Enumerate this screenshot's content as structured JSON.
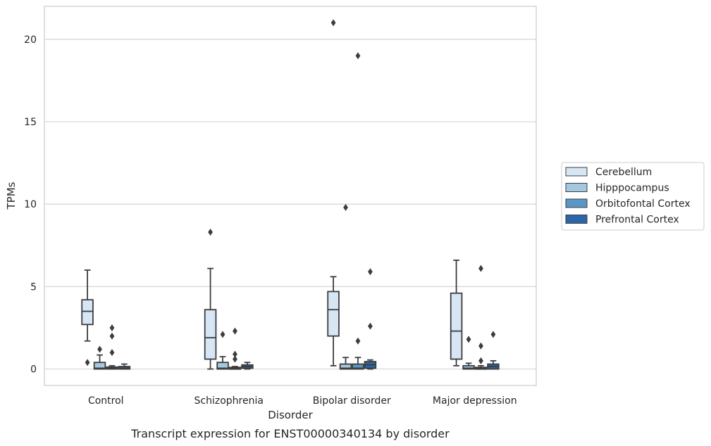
{
  "chart_data": {
    "type": "box",
    "caption": "Transcript expression for ENST00000340134 by disorder",
    "xlabel": "Disorder",
    "ylabel": "TPMs",
    "ylim": [
      -1,
      22
    ],
    "yticks": [
      0,
      5,
      10,
      15,
      20
    ],
    "grid": "horizontal",
    "legend_position": "right",
    "categories": [
      "Control",
      "Schizophrenia",
      "Bipolar disorder",
      "Major depression"
    ],
    "series": [
      {
        "name": "Cerebellum",
        "color": "#d7e6f4",
        "boxes": [
          {
            "whisker_low": 1.7,
            "q1": 2.7,
            "median": 3.5,
            "q3": 4.2,
            "whisker_high": 6.0,
            "outliers": [
              0.4
            ]
          },
          {
            "whisker_low": 0.0,
            "q1": 0.6,
            "median": 1.9,
            "q3": 3.6,
            "whisker_high": 6.1,
            "outliers": [
              8.3
            ]
          },
          {
            "whisker_low": 0.2,
            "q1": 2.0,
            "median": 3.6,
            "q3": 4.7,
            "whisker_high": 5.6,
            "outliers": [
              21.0
            ]
          },
          {
            "whisker_low": 0.2,
            "q1": 0.6,
            "median": 2.3,
            "q3": 4.6,
            "whisker_high": 6.6,
            "outliers": []
          }
        ]
      },
      {
        "name": "Hipppocampus",
        "color": "#a4c8e1",
        "boxes": [
          {
            "whisker_low": 0.0,
            "q1": 0.0,
            "median": 0.05,
            "q3": 0.4,
            "whisker_high": 0.85,
            "outliers": [
              1.2
            ]
          },
          {
            "whisker_low": 0.0,
            "q1": 0.0,
            "median": 0.05,
            "q3": 0.4,
            "whisker_high": 0.75,
            "outliers": [
              2.1
            ]
          },
          {
            "whisker_low": 0.0,
            "q1": 0.0,
            "median": 0.05,
            "q3": 0.3,
            "whisker_high": 0.7,
            "outliers": [
              9.8
            ]
          },
          {
            "whisker_low": 0.0,
            "q1": 0.0,
            "median": 0.05,
            "q3": 0.2,
            "whisker_high": 0.35,
            "outliers": [
              1.8
            ]
          }
        ]
      },
      {
        "name": "Orbitofontal Cortex",
        "color": "#5a96c6",
        "boxes": [
          {
            "whisker_low": 0.0,
            "q1": 0.0,
            "median": 0.05,
            "q3": 0.12,
            "whisker_high": 0.2,
            "outliers": [
              1.0,
              2.0,
              2.5
            ]
          },
          {
            "whisker_low": 0.0,
            "q1": 0.0,
            "median": 0.03,
            "q3": 0.1,
            "whisker_high": 0.15,
            "outliers": [
              0.6,
              0.9,
              2.3
            ]
          },
          {
            "whisker_low": 0.0,
            "q1": 0.0,
            "median": 0.05,
            "q3": 0.3,
            "whisker_high": 0.7,
            "outliers": [
              1.7,
              19.0
            ]
          },
          {
            "whisker_low": 0.0,
            "q1": 0.0,
            "median": 0.03,
            "q3": 0.1,
            "whisker_high": 0.2,
            "outliers": [
              0.5,
              1.4,
              6.1
            ]
          }
        ]
      },
      {
        "name": "Prefrontal Cortex",
        "color": "#2a66a8",
        "boxes": [
          {
            "whisker_low": 0.0,
            "q1": 0.0,
            "median": 0.05,
            "q3": 0.15,
            "whisker_high": 0.3,
            "outliers": []
          },
          {
            "whisker_low": 0.0,
            "q1": 0.05,
            "median": 0.15,
            "q3": 0.25,
            "whisker_high": 0.4,
            "outliers": []
          },
          {
            "whisker_low": 0.0,
            "q1": 0.05,
            "median": 0.25,
            "q3": 0.45,
            "whisker_high": 0.55,
            "outliers": [
              2.6,
              5.9
            ]
          },
          {
            "whisker_low": 0.0,
            "q1": 0.0,
            "median": 0.15,
            "q3": 0.3,
            "whisker_high": 0.5,
            "outliers": [
              2.1
            ]
          }
        ]
      }
    ]
  }
}
